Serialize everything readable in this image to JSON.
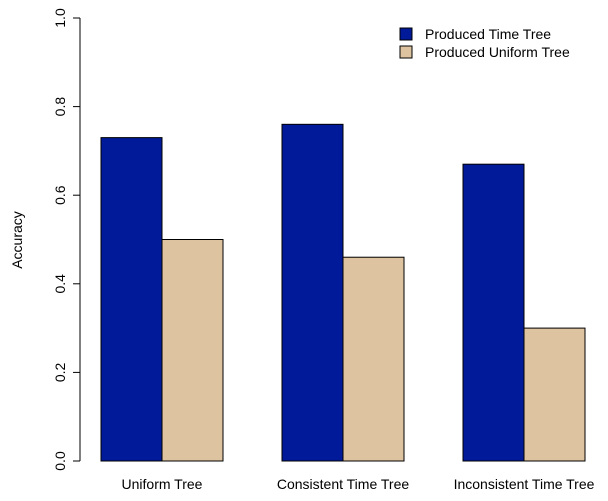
{
  "chart_data": {
    "type": "bar",
    "categories": [
      "Uniform Tree",
      "Consistent Time Tree",
      "Inconsistent Time Tree"
    ],
    "series": [
      {
        "name": "Produced Time Tree",
        "values": [
          0.73,
          0.76,
          0.67
        ],
        "color": "#001a99"
      },
      {
        "name": "Produced Uniform Tree",
        "values": [
          0.5,
          0.46,
          0.3
        ],
        "color": "#dec3a0"
      }
    ],
    "title": "",
    "xlabel": "",
    "ylabel": "Accuracy",
    "ylim": [
      0,
      1
    ],
    "yticks": [
      "0.0",
      "0.2",
      "0.4",
      "0.6",
      "0.8",
      "1.0"
    ],
    "grid": false,
    "legend_position": "top-right"
  }
}
